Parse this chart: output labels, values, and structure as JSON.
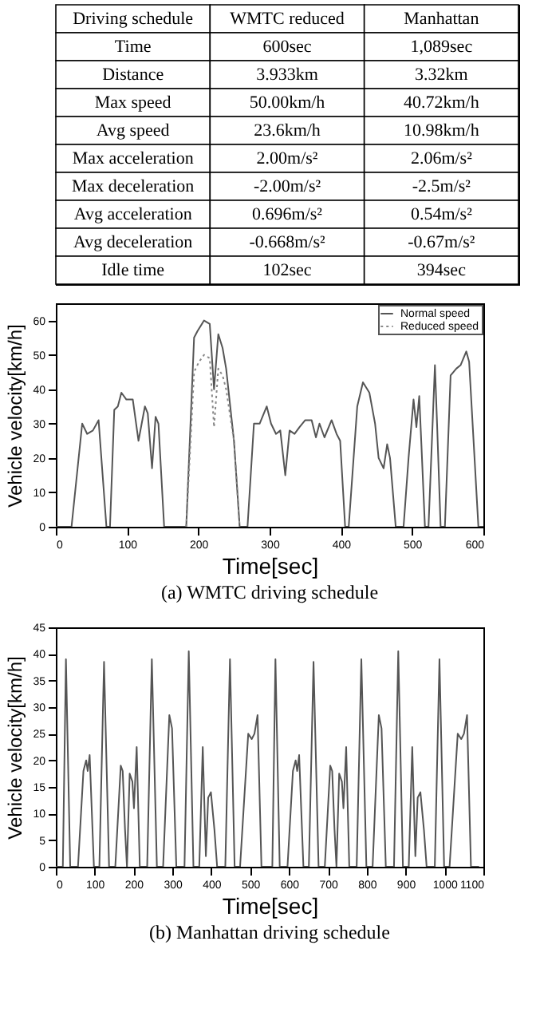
{
  "chart_data": [
    {
      "type": "other",
      "annotations": [
        "Driving schedule",
        "WMTC reduced",
        "Manhattan",
        "Time",
        "600sec",
        "1,089sec",
        "Distance",
        "3.933km",
        "3.32km",
        "Max speed",
        "50.00km/h",
        "40.72km/h",
        "Avg speed",
        "23.6km/h",
        "10.98km/h",
        "Max acceleration",
        "2.00m/s²",
        "2.06m/s²",
        "Max deceleration",
        "-2.00m/s²",
        "-2.5m/s²",
        "Avg acceleration",
        "0.696m/s²",
        "0.54m/s²",
        "Avg deceleration",
        "-0.668m/s²",
        "-0.67m/s²",
        "Idle time",
        "102sec",
        "394sec"
      ]
    },
    {
      "type": "line",
      "xlabel": "Time[sec]",
      "ylabel": "Vehicle velocity[km/h]",
      "xlim": [
        0,
        600
      ],
      "ylim": [
        0,
        65
      ],
      "xticks": [
        0,
        100,
        200,
        300,
        400,
        500,
        600
      ],
      "yticks": [
        0,
        10,
        20,
        30,
        40,
        50,
        60
      ],
      "grid": false,
      "legend": "top right",
      "marker": "none",
      "annotations": [
        "(a) WMTC driving schedule"
      ],
      "series": [
        {
          "name": "Normal speed",
          "color": "#555555",
          "line_style": "solid",
          "x": [
            0,
            22,
            37,
            44,
            52,
            60,
            71,
            76,
            82,
            87,
            92,
            99,
            108,
            116,
            125,
            129,
            135,
            140,
            144,
            152,
            183,
            194,
            199,
            208,
            216,
            222,
            228,
            234,
            239,
            250,
            258,
            269,
            278,
            286,
            296,
            302,
            309,
            315,
            322,
            328,
            335,
            342,
            350,
            359,
            365,
            370,
            377,
            387,
            394,
            399,
            406,
            411,
            423,
            431,
            440,
            448,
            453,
            460,
            465,
            469,
            477,
            488,
            495,
            502,
            506,
            510,
            513,
            518,
            523,
            532,
            535,
            540,
            546,
            554,
            562,
            568,
            576,
            580,
            593,
            600
          ],
          "values": [
            0,
            0,
            30,
            27,
            28,
            31,
            0,
            0,
            34,
            35,
            39,
            37,
            37,
            25,
            35,
            33,
            17,
            32,
            30,
            0,
            0,
            55,
            57,
            60,
            59,
            40,
            56,
            52,
            46,
            25,
            0,
            0,
            30,
            30,
            35,
            30,
            27,
            28,
            15,
            28,
            27,
            29,
            31,
            31,
            26,
            30,
            26,
            31,
            27,
            25,
            0,
            0,
            35,
            42,
            39,
            30,
            20,
            17,
            24,
            20,
            0,
            0,
            20,
            37,
            29,
            38,
            24,
            0,
            0,
            47,
            30,
            0,
            0,
            44,
            46,
            47,
            51,
            48,
            0,
            0
          ]
        },
        {
          "name": "Reduced speed",
          "color": "#888888",
          "line_style": "dotted",
          "x": [
            183,
            194,
            201,
            208,
            216,
            222,
            228,
            234,
            239,
            250,
            258
          ],
          "values": [
            0,
            45,
            48,
            50,
            49,
            29,
            46,
            44,
            40,
            25,
            0
          ]
        }
      ]
    },
    {
      "type": "line",
      "xlabel": "Time[sec]",
      "ylabel": "Vehicle velocity[km/h]",
      "xlim": [
        0,
        1100
      ],
      "ylim": [
        0,
        45
      ],
      "xticks": [
        0,
        100,
        200,
        300,
        400,
        500,
        600,
        700,
        800,
        900,
        1000,
        1100
      ],
      "yticks": [
        0,
        5,
        10,
        15,
        20,
        25,
        30,
        35,
        40,
        45
      ],
      "grid": false,
      "marker": "none",
      "annotations": [
        "(b) Manhattan driving schedule"
      ],
      "series": [
        {
          "color": "#555555",
          "line_style": "solid",
          "x": [
            0,
            18,
            26,
            37,
            57,
            71,
            78,
            82,
            87,
            98,
            112,
            124,
            137,
            153,
            167,
            172,
            178,
            183,
            190,
            197,
            201,
            208,
            216,
            235,
            247,
            260,
            276,
            292,
            299,
            310,
            331,
            342,
            354,
            369,
            378,
            386,
            392,
            399,
            408,
            415,
            436,
            448,
            460,
            474,
            495,
            504,
            511,
            519,
            529,
            557,
            565,
            576,
            596,
            610,
            617,
            621,
            626,
            637,
            651,
            663,
            676,
            692,
            706,
            711,
            717,
            722,
            729,
            736,
            740,
            747,
            755,
            774,
            786,
            799,
            815,
            831,
            838,
            849,
            870,
            881,
            893,
            908,
            917,
            925,
            931,
            938,
            947,
            954,
            975,
            987,
            999,
            1013,
            1034,
            1043,
            1050,
            1058,
            1068,
            1089
          ],
          "values": [
            0,
            0,
            39,
            0,
            0,
            18,
            20,
            18,
            21,
            0,
            0,
            38.5,
            0,
            0,
            19,
            18,
            7,
            0,
            17.5,
            16,
            11,
            22.5,
            0,
            0,
            39,
            0,
            0,
            28.5,
            26,
            0,
            0,
            40.5,
            0,
            0,
            22.5,
            2,
            13,
            14,
            7,
            0,
            0,
            39,
            0,
            0,
            25,
            24,
            25,
            28.5,
            0,
            0,
            39,
            0,
            0,
            18,
            20,
            18,
            21,
            0,
            0,
            38.5,
            0,
            0,
            19,
            18,
            7,
            0,
            17.5,
            16,
            11,
            22.5,
            0,
            0,
            39,
            0,
            0,
            28.5,
            26,
            0,
            0,
            40.5,
            0,
            0,
            22.5,
            2,
            13,
            14,
            7,
            0,
            0,
            39,
            0,
            0,
            25,
            24,
            25,
            28.5,
            0,
            0
          ]
        }
      ]
    }
  ]
}
